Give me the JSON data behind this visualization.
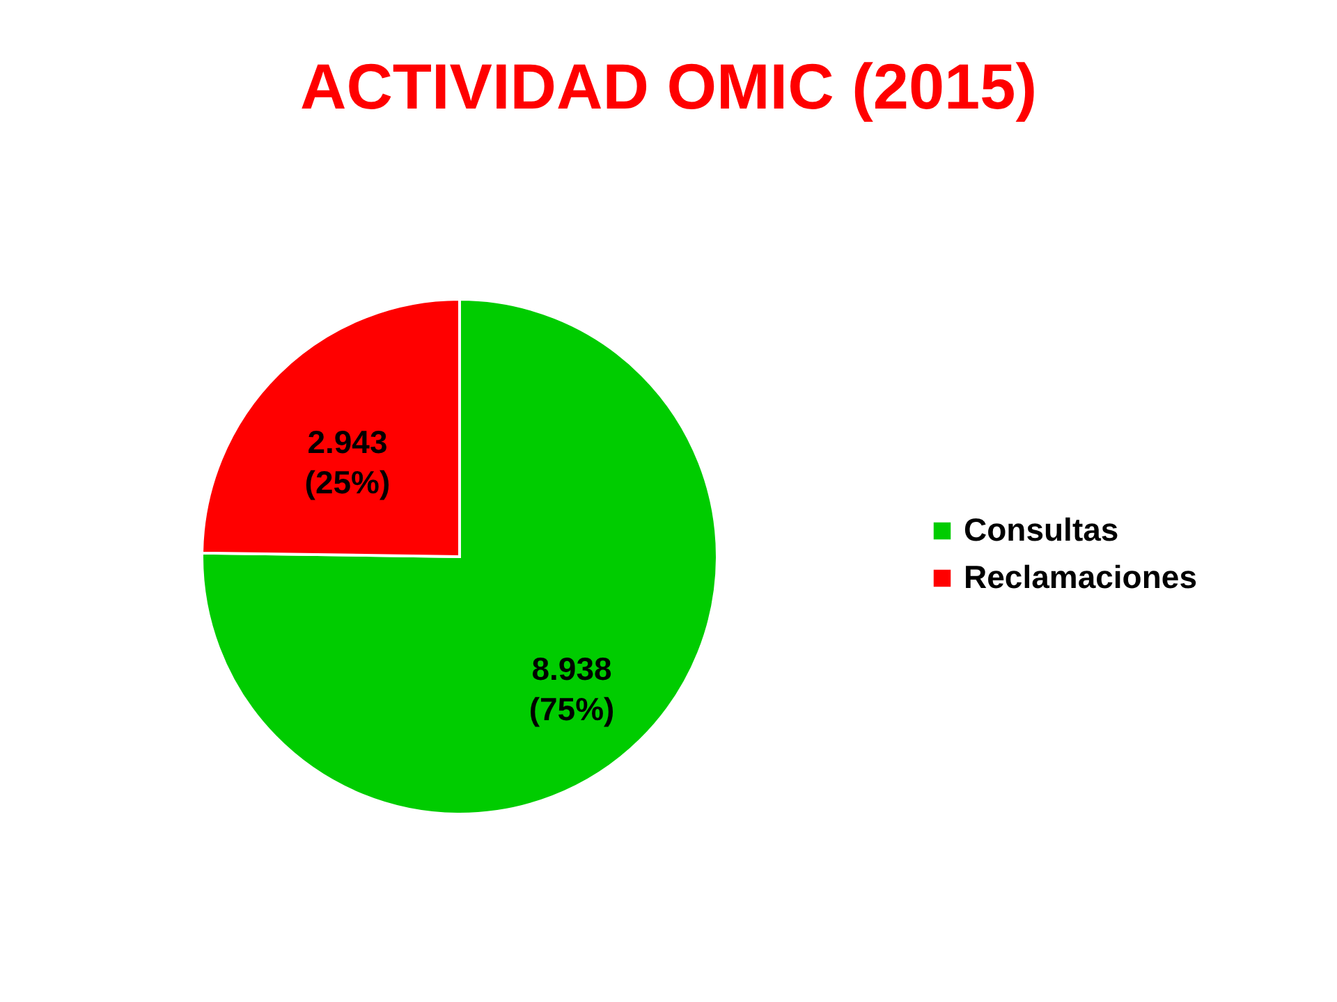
{
  "chart_data": {
    "type": "pie",
    "title": "ACTIVIDAD OMIC (2015)",
    "categories": [
      "Consultas",
      "Reclamaciones"
    ],
    "values": [
      8938,
      2943
    ],
    "colors": [
      "#00cc00",
      "#ff0000"
    ],
    "value_labels": [
      "8.938 (75%)",
      "2.943 (25%)"
    ],
    "legend": "right"
  }
}
